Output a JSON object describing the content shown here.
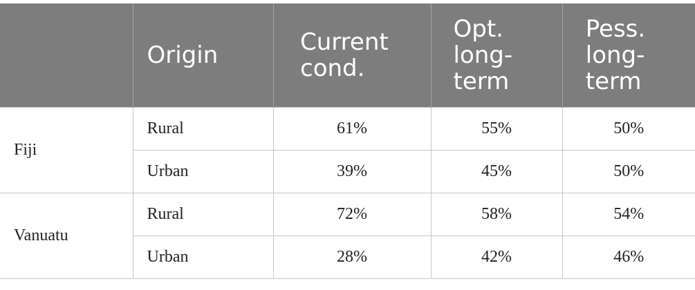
{
  "header": {
    "columns": [
      "Origin",
      "Current cond.",
      "Opt. long-term",
      "Pess. long-term"
    ]
  },
  "table": {
    "groups": [
      {
        "country": "Fiji",
        "rows": [
          [
            "Rural",
            "61%",
            "55%",
            "50%"
          ],
          [
            "Urban",
            "39%",
            "45%",
            "50%"
          ]
        ]
      },
      {
        "country": "Vanuatu",
        "rows": [
          [
            "Rural",
            "72%",
            "58%",
            "54%"
          ],
          [
            "Urban",
            "28%",
            "42%",
            "46%"
          ]
        ]
      }
    ]
  }
}
